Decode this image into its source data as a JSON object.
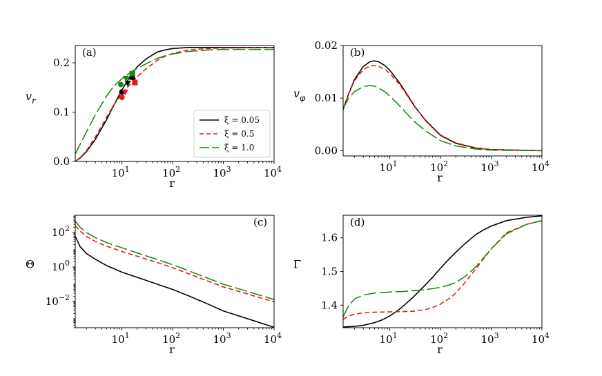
{
  "chart_data": [
    {
      "panel": "a",
      "type": "line",
      "panel_tag": "(a)",
      "xlabel": "r",
      "ylabel": "v_r",
      "xscale": "log",
      "xlim": [
        1.2,
        10000
      ],
      "ylim": [
        0,
        0.235
      ],
      "xticks": [
        {
          "v": 10,
          "exp": "1"
        },
        {
          "v": 100,
          "exp": "2"
        },
        {
          "v": 1000,
          "exp": "3"
        },
        {
          "v": 10000,
          "exp": "4"
        }
      ],
      "yticks": [
        {
          "v": 0,
          "label": "0.0"
        },
        {
          "v": 0.1,
          "label": "0.1"
        },
        {
          "v": 0.2,
          "label": "0.2"
        }
      ],
      "legend": {
        "position": "lower-right",
        "entries": [
          "ξ = 0.05",
          "ξ = 0.5",
          "ξ = 1.0"
        ]
      },
      "series": [
        {
          "name": "ξ = 0.05",
          "color": "#000000",
          "dash": "solid",
          "x": [
            1.2,
            1.5,
            2,
            3,
            5,
            7,
            10,
            15,
            20,
            30,
            50,
            70,
            100,
            200,
            500,
            1000,
            10000
          ],
          "y": [
            0.0,
            0.007,
            0.02,
            0.045,
            0.085,
            0.115,
            0.145,
            0.175,
            0.192,
            0.208,
            0.222,
            0.226,
            0.229,
            0.231,
            0.231,
            0.231,
            0.231
          ]
        },
        {
          "name": "ξ = 0.5",
          "color": "#e41a1c",
          "dash": "dashed",
          "x": [
            1.2,
            1.5,
            2,
            3,
            5,
            7,
            10,
            15,
            20,
            30,
            50,
            70,
            100,
            200,
            500,
            1000,
            10000
          ],
          "y": [
            0.0,
            0.008,
            0.022,
            0.05,
            0.09,
            0.115,
            0.138,
            0.158,
            0.172,
            0.188,
            0.205,
            0.213,
            0.219,
            0.226,
            0.229,
            0.23,
            0.231
          ]
        },
        {
          "name": "ξ = 1.0",
          "color": "#1a8a10",
          "dash": "longdash",
          "x": [
            1.2,
            1.5,
            2,
            3,
            5,
            7,
            10,
            15,
            20,
            30,
            50,
            70,
            100,
            200,
            500,
            1000,
            10000
          ],
          "y": [
            0.015,
            0.035,
            0.06,
            0.095,
            0.133,
            0.153,
            0.168,
            0.181,
            0.189,
            0.198,
            0.209,
            0.214,
            0.218,
            0.223,
            0.226,
            0.227,
            0.227
          ]
        }
      ],
      "markers": [
        {
          "x": 10,
          "y": 0.141,
          "color": "#000000",
          "shape": "circle"
        },
        {
          "x": 13,
          "y": 0.158,
          "color": "#000000",
          "shape": "triangle"
        },
        {
          "x": 16,
          "y": 0.171,
          "color": "#000000",
          "shape": "square"
        },
        {
          "x": 10,
          "y": 0.13,
          "color": "#e41a1c",
          "shape": "circle"
        },
        {
          "x": 11.5,
          "y": 0.14,
          "color": "#e41a1c",
          "shape": "triangle"
        },
        {
          "x": 18,
          "y": 0.16,
          "color": "#e41a1c",
          "shape": "square"
        },
        {
          "x": 9.5,
          "y": 0.156,
          "color": "#1a8a10",
          "shape": "circle"
        },
        {
          "x": 12,
          "y": 0.168,
          "color": "#1a8a10",
          "shape": "triangle"
        },
        {
          "x": 16,
          "y": 0.178,
          "color": "#1a8a10",
          "shape": "square"
        }
      ]
    },
    {
      "panel": "b",
      "type": "line",
      "panel_tag": "(b)",
      "xlabel": "r",
      "ylabel": "v_φ",
      "xscale": "log",
      "xlim": [
        1.2,
        10000
      ],
      "ylim": [
        -0.001,
        0.02
      ],
      "xticks": [
        {
          "v": 10,
          "exp": "1"
        },
        {
          "v": 100,
          "exp": "2"
        },
        {
          "v": 1000,
          "exp": "3"
        },
        {
          "v": 10000,
          "exp": "4"
        }
      ],
      "yticks": [
        {
          "v": 0,
          "label": "0.00"
        },
        {
          "v": 0.01,
          "label": "0.01"
        },
        {
          "v": 0.02,
          "label": "0.02"
        }
      ],
      "series": [
        {
          "name": "ξ = 0.05",
          "color": "#000000",
          "dash": "solid",
          "x": [
            1.2,
            1.5,
            2,
            3,
            4,
            5,
            6,
            8,
            10,
            15,
            20,
            30,
            50,
            100,
            200,
            500,
            1000,
            10000
          ],
          "y": [
            0.0078,
            0.0105,
            0.0135,
            0.016,
            0.0169,
            0.0171,
            0.0169,
            0.0162,
            0.0153,
            0.0131,
            0.0113,
            0.0086,
            0.0058,
            0.0029,
            0.0014,
            0.0005,
            0.0002,
            0.0
          ]
        },
        {
          "name": "ξ = 0.5",
          "color": "#e41a1c",
          "dash": "dashed",
          "x": [
            1.2,
            1.5,
            2,
            3,
            4,
            5,
            6,
            8,
            10,
            15,
            20,
            30,
            50,
            100,
            200,
            500,
            1000,
            10000
          ],
          "y": [
            0.008,
            0.0105,
            0.0133,
            0.0154,
            0.0161,
            0.0162,
            0.016,
            0.0155,
            0.0147,
            0.0128,
            0.0111,
            0.0085,
            0.0059,
            0.003,
            0.0015,
            0.0005,
            0.0002,
            0.0
          ]
        },
        {
          "name": "ξ = 1.0",
          "color": "#1a8a10",
          "dash": "longdash",
          "x": [
            1.2,
            1.5,
            2,
            3,
            4,
            5,
            6,
            8,
            10,
            15,
            20,
            30,
            50,
            100,
            200,
            500,
            1000,
            10000
          ],
          "y": [
            0.008,
            0.0098,
            0.0112,
            0.0122,
            0.0124,
            0.0123,
            0.0119,
            0.0112,
            0.0104,
            0.0087,
            0.0074,
            0.0056,
            0.0038,
            0.0019,
            0.0009,
            0.0003,
            0.0001,
            0.0
          ]
        }
      ]
    },
    {
      "panel": "c",
      "type": "line",
      "panel_tag": "(c)",
      "xlabel": "r",
      "ylabel": "Θ",
      "xscale": "log",
      "yscale": "log",
      "xlim": [
        1.2,
        10000
      ],
      "ylim": [
        0.0003,
        1000
      ],
      "xticks": [
        {
          "v": 10,
          "exp": "1"
        },
        {
          "v": 100,
          "exp": "2"
        },
        {
          "v": 1000,
          "exp": "3"
        },
        {
          "v": 10000,
          "exp": "4"
        }
      ],
      "yticks": [
        {
          "v": 0.01,
          "exp": "−2"
        },
        {
          "v": 1,
          "exp": "0"
        },
        {
          "v": 100,
          "exp": "2"
        }
      ],
      "series": [
        {
          "name": "ξ = 0.05",
          "color": "#000000",
          "dash": "solid",
          "x": [
            1.2,
            1.5,
            2,
            3,
            5,
            10,
            20,
            50,
            100,
            200,
            500,
            1000,
            10000
          ],
          "y": [
            60,
            15,
            6,
            2.8,
            1.2,
            0.5,
            0.25,
            0.1,
            0.05,
            0.022,
            0.007,
            0.0028,
            0.00032
          ]
        },
        {
          "name": "ξ = 0.5",
          "color": "#e41a1c",
          "dash": "dashed",
          "x": [
            1.2,
            1.5,
            2,
            3,
            5,
            10,
            20,
            50,
            100,
            200,
            500,
            1000,
            10000
          ],
          "y": [
            250,
            120,
            60,
            30,
            16,
            8,
            4.2,
            1.8,
            0.9,
            0.42,
            0.15,
            0.07,
            0.0095
          ]
        },
        {
          "name": "ξ = 1.0",
          "color": "#1a8a10",
          "dash": "longdash",
          "x": [
            1.2,
            1.5,
            2,
            3,
            5,
            10,
            20,
            50,
            100,
            200,
            500,
            1000,
            10000
          ],
          "y": [
            450,
            200,
            100,
            50,
            26,
            13,
            6.5,
            2.7,
            1.35,
            0.62,
            0.22,
            0.1,
            0.013
          ]
        }
      ]
    },
    {
      "panel": "d",
      "type": "line",
      "panel_tag": "(d)",
      "xlabel": "r",
      "ylabel": "Γ",
      "xscale": "log",
      "xlim": [
        1.2,
        10000
      ],
      "ylim": [
        1.333,
        1.667
      ],
      "xticks": [
        {
          "v": 10,
          "exp": "1"
        },
        {
          "v": 100,
          "exp": "2"
        },
        {
          "v": 1000,
          "exp": "3"
        },
        {
          "v": 10000,
          "exp": "4"
        }
      ],
      "yticks": [
        {
          "v": 1.4,
          "label": "1.4"
        },
        {
          "v": 1.5,
          "label": "1.5"
        },
        {
          "v": 1.6,
          "label": "1.6"
        }
      ],
      "series": [
        {
          "name": "ξ = 0.05",
          "color": "#000000",
          "dash": "solid",
          "x": [
            1.2,
            1.5,
            2,
            3,
            5,
            7,
            10,
            15,
            20,
            30,
            50,
            70,
            100,
            150,
            200,
            300,
            500,
            700,
            1000,
            2000,
            5000,
            10000
          ],
          "y": [
            1.335,
            1.336,
            1.337,
            1.34,
            1.348,
            1.356,
            1.368,
            1.386,
            1.402,
            1.426,
            1.46,
            1.483,
            1.51,
            1.538,
            1.557,
            1.582,
            1.61,
            1.623,
            1.635,
            1.651,
            1.661,
            1.665
          ]
        },
        {
          "name": "ξ = 0.5",
          "color": "#e41a1c",
          "dash": "dashed",
          "x": [
            1.2,
            1.5,
            2,
            3,
            5,
            10,
            20,
            30,
            50,
            70,
            100,
            150,
            200,
            300,
            500,
            700,
            1000,
            2000,
            5000,
            10000
          ],
          "y": [
            1.358,
            1.367,
            1.373,
            1.377,
            1.379,
            1.38,
            1.381,
            1.382,
            1.387,
            1.393,
            1.403,
            1.42,
            1.436,
            1.466,
            1.508,
            1.537,
            1.567,
            1.615,
            1.64,
            1.652
          ]
        },
        {
          "name": "ξ = 1.0",
          "color": "#1a8a10",
          "dash": "longdash",
          "x": [
            1.2,
            1.5,
            2,
            3,
            5,
            10,
            20,
            30,
            50,
            70,
            100,
            150,
            200,
            300,
            500,
            700,
            1000,
            2000,
            5000,
            10000
          ],
          "y": [
            1.365,
            1.395,
            1.418,
            1.43,
            1.436,
            1.439,
            1.441,
            1.443,
            1.446,
            1.449,
            1.453,
            1.46,
            1.468,
            1.484,
            1.514,
            1.54,
            1.567,
            1.612,
            1.64,
            1.651
          ]
        }
      ]
    }
  ]
}
